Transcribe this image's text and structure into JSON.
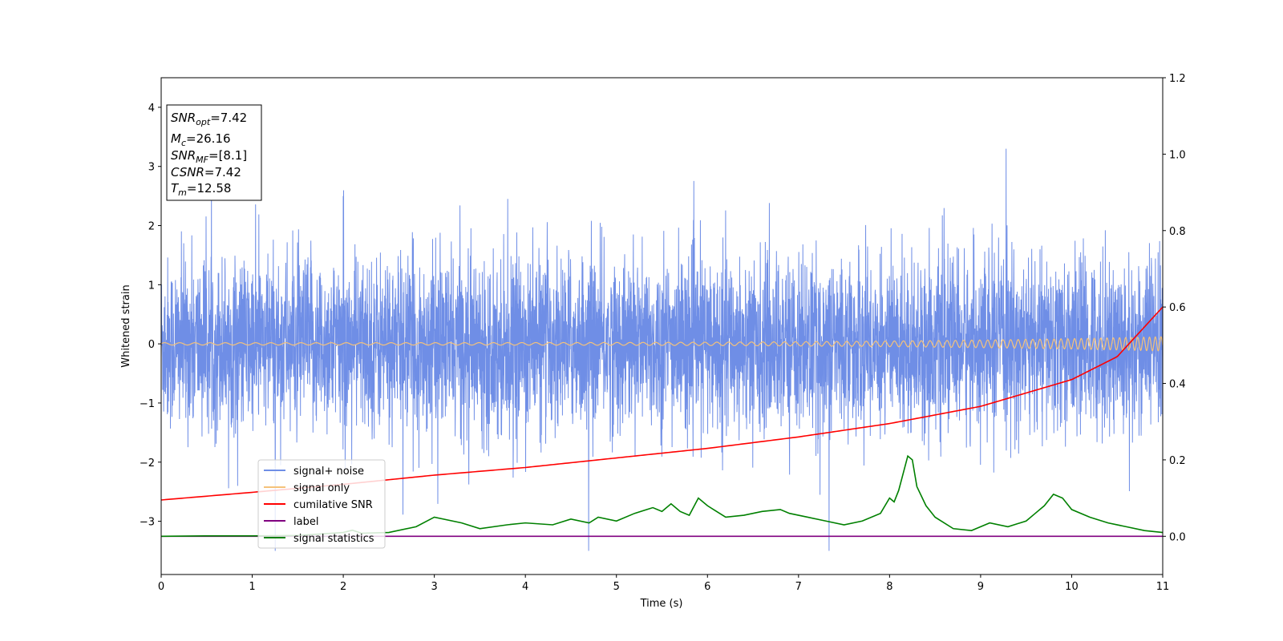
{
  "chart_data": {
    "type": "line",
    "title": "",
    "xlabel": "Time (s)",
    "ylabel": "Whitened strain",
    "xlim": [
      0,
      11
    ],
    "ylim": [
      -3.9,
      4.5
    ],
    "y2lim": [
      -0.1,
      1.2
    ],
    "xticks": [
      "0",
      "1",
      "2",
      "3",
      "4",
      "5",
      "6",
      "7",
      "8",
      "9",
      "10",
      "11"
    ],
    "yticks": [
      "−3",
      "−2",
      "−1",
      "0",
      "1",
      "2",
      "3",
      "4"
    ],
    "yticks_values": [
      -3,
      -2,
      -1,
      0,
      1,
      2,
      3,
      4
    ],
    "y2ticks": [
      "0.0",
      "0.2",
      "0.4",
      "0.6",
      "0.8",
      "1.0",
      "1.2"
    ],
    "y2ticks_values": [
      0,
      0.2,
      0.4,
      0.6,
      0.8,
      1.0,
      1.2
    ],
    "grid": false,
    "legend_position": "lower-left",
    "info_box": [
      {
        "base": "SNR",
        "sub": "opt",
        "value": "=7.42"
      },
      {
        "base": "M",
        "sub": "c",
        "value": "=26.16"
      },
      {
        "base": "SNR",
        "sub": "MF",
        "value": "=[8.1]"
      },
      {
        "base": "CSNR",
        "sub": "",
        "value": "=7.42"
      },
      {
        "base": "T",
        "sub": "m",
        "value": "=12.58"
      }
    ],
    "series": [
      {
        "name": "signal+ noise",
        "color": "#6f8ee6",
        "axis": "left",
        "description_free": true,
        "amplitude_rms": 1.0,
        "max_excursion": [
          -3.5,
          3.3
        ]
      },
      {
        "name": "signal only",
        "color": "#f5c27a",
        "axis": "left",
        "chirp_amplitude_start": 0.02,
        "chirp_amplitude_end": 0.12
      },
      {
        "name": "cumilative SNR",
        "color": "#ff0000",
        "axis": "right",
        "x": [
          0,
          1,
          2,
          3,
          4,
          5,
          6,
          7,
          8,
          9,
          10,
          10.5,
          11
        ],
        "y": [
          0.095,
          0.115,
          0.136,
          0.16,
          0.18,
          0.205,
          0.23,
          0.26,
          0.295,
          0.34,
          0.41,
          0.47,
          0.6
        ]
      },
      {
        "name": "label",
        "color": "#800080",
        "axis": "right",
        "x": [
          0,
          11
        ],
        "y": [
          0,
          0
        ]
      },
      {
        "name": "signal statistics",
        "color": "#008000",
        "axis": "right",
        "x": [
          0,
          0.5,
          1,
          1.5,
          2,
          2.1,
          2.2,
          2.5,
          2.8,
          3.0,
          3.3,
          3.5,
          3.8,
          4.0,
          4.3,
          4.5,
          4.7,
          4.8,
          5.0,
          5.2,
          5.4,
          5.5,
          5.6,
          5.7,
          5.8,
          5.9,
          6.0,
          6.2,
          6.4,
          6.6,
          6.8,
          6.9,
          7.1,
          7.3,
          7.5,
          7.7,
          7.9,
          8.0,
          8.05,
          8.1,
          8.2,
          8.25,
          8.3,
          8.4,
          8.5,
          8.7,
          8.9,
          9.0,
          9.1,
          9.3,
          9.5,
          9.6,
          9.7,
          9.8,
          9.9,
          10.0,
          10.2,
          10.4,
          10.6,
          10.8,
          11
        ],
        "y": [
          0.0,
          0.001,
          0.001,
          0.002,
          0.01,
          0.016,
          0.008,
          0.01,
          0.025,
          0.05,
          0.035,
          0.02,
          0.03,
          0.035,
          0.03,
          0.045,
          0.035,
          0.05,
          0.04,
          0.06,
          0.075,
          0.065,
          0.085,
          0.065,
          0.055,
          0.1,
          0.08,
          0.05,
          0.055,
          0.065,
          0.07,
          0.06,
          0.05,
          0.04,
          0.03,
          0.04,
          0.06,
          0.1,
          0.09,
          0.12,
          0.21,
          0.2,
          0.13,
          0.08,
          0.05,
          0.02,
          0.015,
          0.025,
          0.035,
          0.025,
          0.04,
          0.06,
          0.08,
          0.11,
          0.1,
          0.07,
          0.05,
          0.035,
          0.025,
          0.015,
          0.01
        ]
      }
    ]
  }
}
